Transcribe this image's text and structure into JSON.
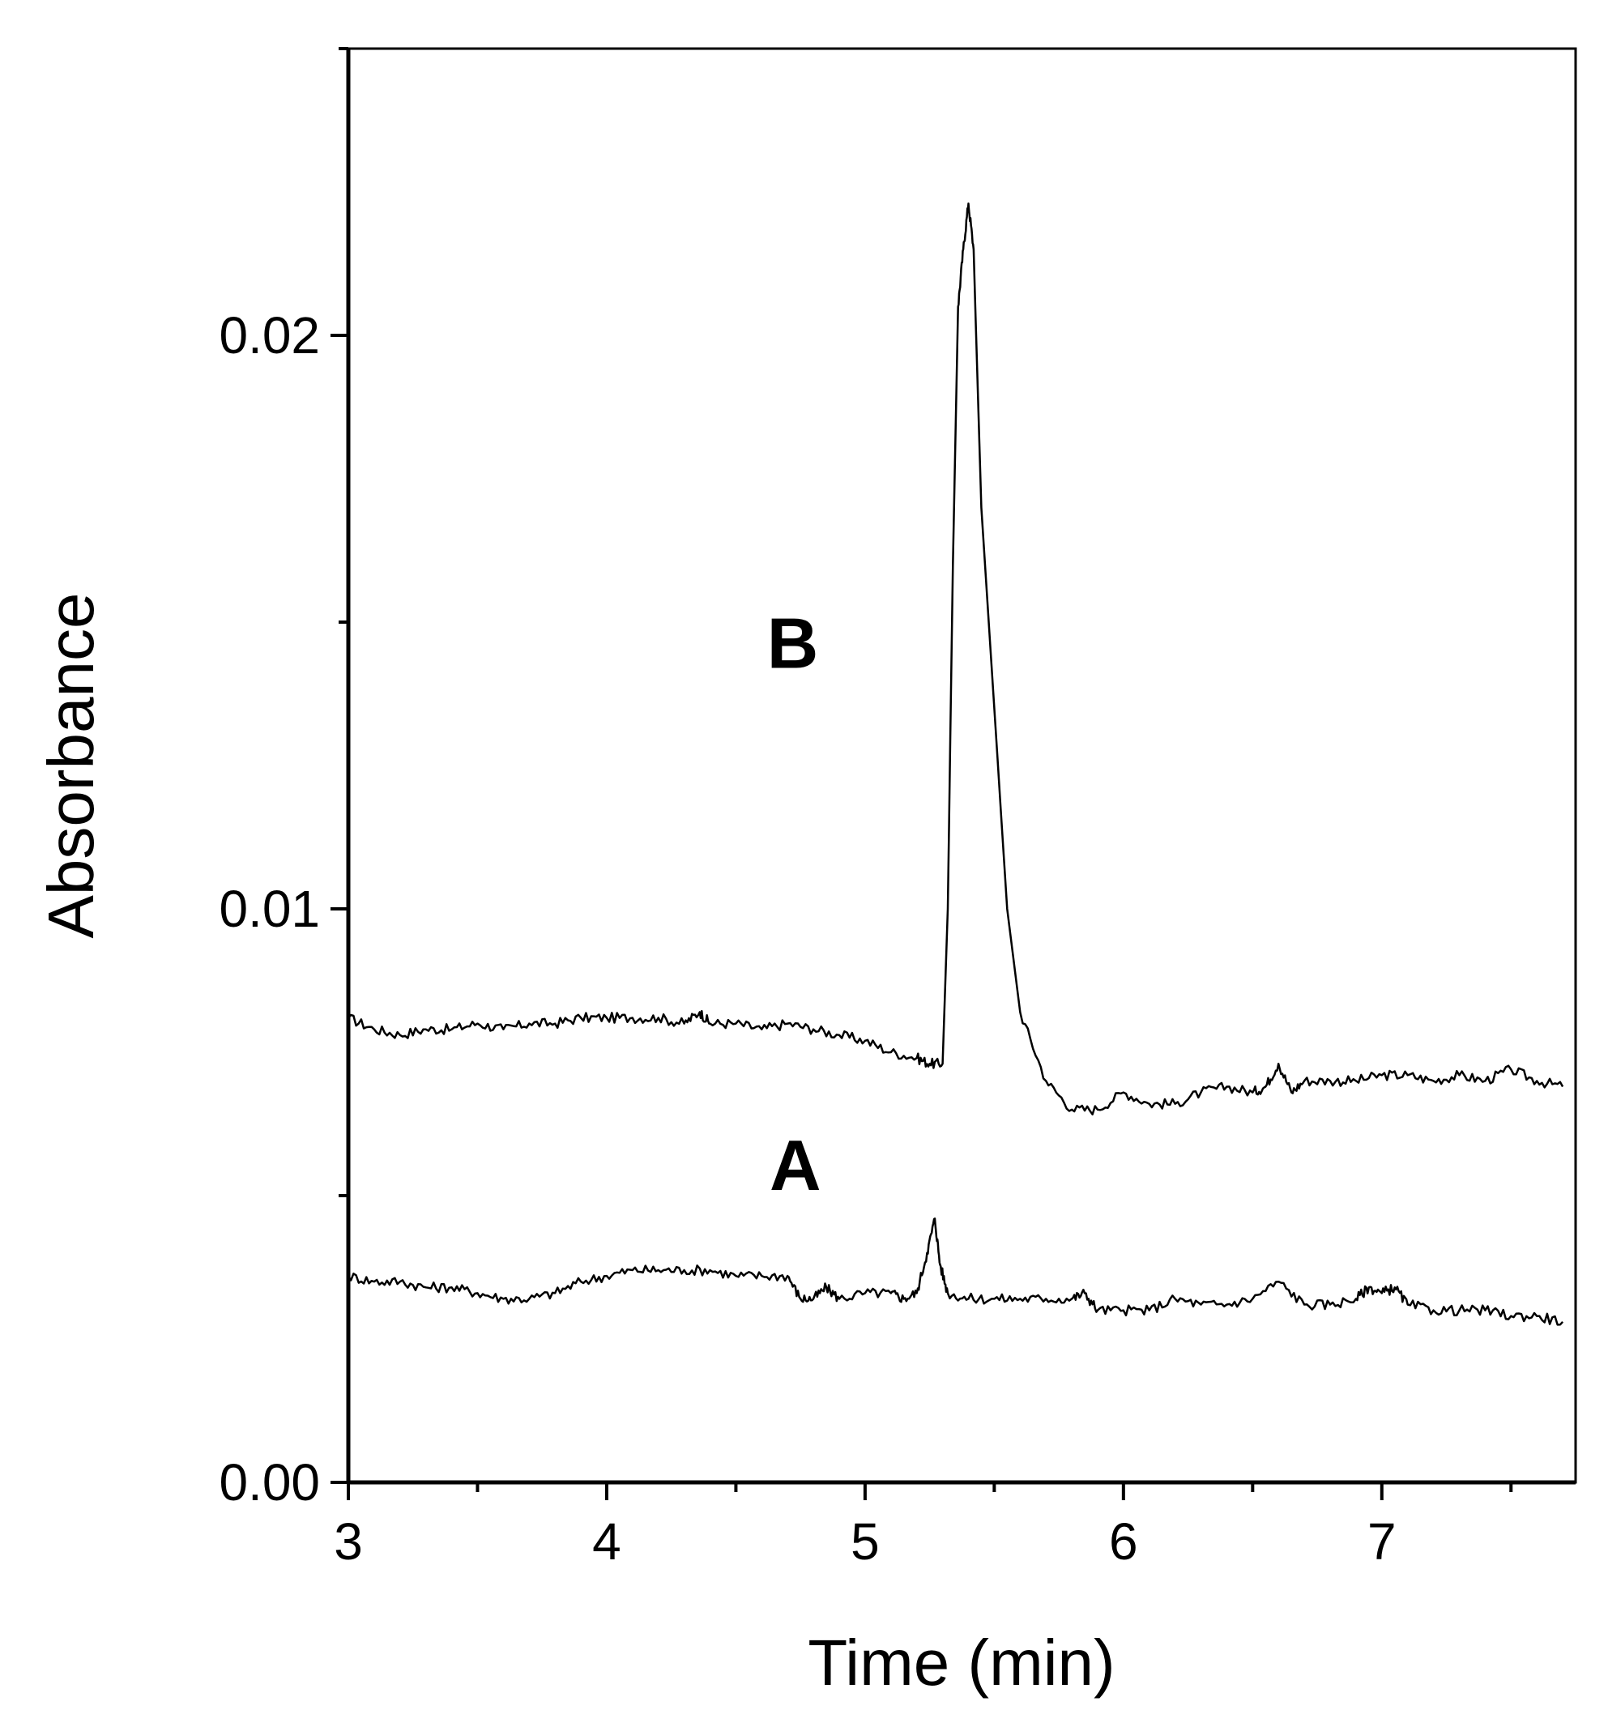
{
  "chart_data": {
    "type": "line",
    "title": "",
    "xlabel": "Time (min)",
    "ylabel": "Absorbance",
    "xlim": [
      3.0,
      7.75
    ],
    "ylim": [
      0.0,
      0.025
    ],
    "xticks": [
      3,
      4,
      5,
      6,
      7
    ],
    "xtick_labels": [
      "3",
      "4",
      "5",
      "6",
      "7"
    ],
    "yticks": [
      0.0,
      0.01,
      0.02
    ],
    "ytick_labels": [
      "0.00",
      "0.01",
      "0.02"
    ],
    "grid": false,
    "line_color": "#000000",
    "annotations": [
      {
        "text": "B",
        "x": 4.72,
        "y": 0.0142
      },
      {
        "text": "A",
        "x": 4.73,
        "y": 0.0051
      }
    ],
    "series": [
      {
        "name": "B",
        "x": [
          3.0,
          3.1,
          3.2,
          3.3,
          3.4,
          3.5,
          3.6,
          3.7,
          3.8,
          3.9,
          4.0,
          4.1,
          4.2,
          4.3,
          4.36,
          4.4,
          4.5,
          4.6,
          4.7,
          4.8,
          4.9,
          5.0,
          5.1,
          5.2,
          5.25,
          5.3,
          5.32,
          5.34,
          5.36,
          5.38,
          5.4,
          5.42,
          5.45,
          5.5,
          5.55,
          5.6,
          5.7,
          5.8,
          5.9,
          6.0,
          6.1,
          6.2,
          6.3,
          6.4,
          6.5,
          6.55,
          6.6,
          6.65,
          6.7,
          6.8,
          6.9,
          7.0,
          7.1,
          7.2,
          7.3,
          7.4,
          7.5,
          7.6,
          7.7
        ],
        "y": [
          0.0081,
          0.0079,
          0.0078,
          0.0079,
          0.0079,
          0.008,
          0.0079,
          0.008,
          0.008,
          0.0081,
          0.0081,
          0.0081,
          0.0081,
          0.008,
          0.0082,
          0.008,
          0.008,
          0.0079,
          0.008,
          0.0079,
          0.0078,
          0.0077,
          0.0075,
          0.0074,
          0.0073,
          0.0073,
          0.01,
          0.016,
          0.0205,
          0.0215,
          0.0223,
          0.0215,
          0.017,
          0.0135,
          0.01,
          0.0082,
          0.007,
          0.0065,
          0.0065,
          0.0068,
          0.0066,
          0.0066,
          0.0068,
          0.0069,
          0.0068,
          0.0069,
          0.0073,
          0.0068,
          0.007,
          0.007,
          0.007,
          0.0071,
          0.0071,
          0.007,
          0.0071,
          0.007,
          0.0072,
          0.007,
          0.0069
        ]
      },
      {
        "name": "A",
        "x": [
          3.0,
          3.1,
          3.2,
          3.3,
          3.4,
          3.5,
          3.6,
          3.7,
          3.8,
          3.9,
          4.0,
          4.1,
          4.2,
          4.3,
          4.4,
          4.5,
          4.6,
          4.7,
          4.75,
          4.8,
          4.85,
          4.9,
          5.0,
          5.1,
          5.15,
          5.2,
          5.24,
          5.27,
          5.29,
          5.32,
          5.4,
          5.5,
          5.6,
          5.7,
          5.8,
          5.85,
          5.9,
          6.0,
          6.1,
          6.2,
          6.3,
          6.4,
          6.5,
          6.6,
          6.7,
          6.8,
          6.9,
          6.95,
          7.0,
          7.05,
          7.1,
          7.2,
          7.3,
          7.4,
          7.5,
          7.6,
          7.7
        ],
        "y": [
          0.0036,
          0.0035,
          0.0035,
          0.0034,
          0.0034,
          0.0033,
          0.0032,
          0.0032,
          0.0033,
          0.0035,
          0.0036,
          0.0037,
          0.0037,
          0.0037,
          0.0037,
          0.0036,
          0.0036,
          0.0036,
          0.0032,
          0.0032,
          0.0034,
          0.0032,
          0.0033,
          0.0033,
          0.0032,
          0.0033,
          0.004,
          0.0046,
          0.0038,
          0.0033,
          0.0032,
          0.0032,
          0.0032,
          0.0032,
          0.0032,
          0.0033,
          0.003,
          0.003,
          0.003,
          0.0032,
          0.0031,
          0.0031,
          0.0032,
          0.0035,
          0.0031,
          0.0031,
          0.0032,
          0.0034,
          0.0033,
          0.0034,
          0.0031,
          0.003,
          0.003,
          0.003,
          0.0029,
          0.0029,
          0.0028
        ]
      }
    ]
  }
}
